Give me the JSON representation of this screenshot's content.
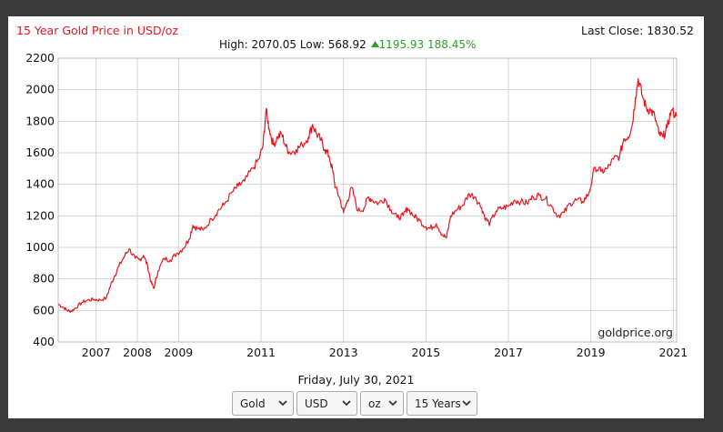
{
  "header": {
    "title": "15 Year Gold Price in USD/oz",
    "last_close": "Last Close: 1830.52",
    "high": "High: 2070.05",
    "low": "Low: 568.92",
    "change": "1195.93 188.45%",
    "up_icon": "triangle-up-icon"
  },
  "watermark": "goldprice.org",
  "footer": {
    "date": "Friday, July 30, 2021",
    "metal": "Gold",
    "currency": "USD",
    "unit": "oz",
    "range": "15 Years"
  },
  "colors": {
    "line": "#e8141c",
    "title": "#e8141c",
    "up": "#2aa12a",
    "grid": "#d4d4d4",
    "frame_bg": "#3a3a3a"
  },
  "chart_data": {
    "type": "line",
    "title": "15 Year Gold Price in USD/oz",
    "xlabel": "",
    "ylabel": "",
    "ylim": [
      400,
      2200
    ],
    "xlim": [
      2006.58,
      2021.58
    ],
    "y_ticks": [
      400,
      600,
      800,
      1000,
      1200,
      1400,
      1600,
      1800,
      2000,
      2200
    ],
    "x_ticks": [
      "2007",
      "2008",
      "2009",
      "2011",
      "2013",
      "2015",
      "2017",
      "2019",
      "2021"
    ],
    "grid": true,
    "series": [
      {
        "x": [
          2006.58,
          2006.7,
          2006.8,
          2006.9,
          2007.0,
          2007.15,
          2007.3,
          2007.45,
          2007.6,
          2007.75,
          2007.85,
          2007.95,
          2008.05,
          2008.2,
          2008.3,
          2008.45,
          2008.55,
          2008.65,
          2008.75,
          2008.83,
          2008.9,
          2009.0,
          2009.15,
          2009.3,
          2009.45,
          2009.6,
          2009.75,
          2009.85,
          2009.95,
          2010.1,
          2010.3,
          2010.45,
          2010.6,
          2010.8,
          2010.95,
          2011.1,
          2011.3,
          2011.45,
          2011.55,
          2011.62,
          2011.7,
          2011.8,
          2011.9,
          2012.0,
          2012.1,
          2012.2,
          2012.35,
          2012.5,
          2012.65,
          2012.75,
          2012.85,
          2012.95,
          2013.05,
          2013.15,
          2013.25,
          2013.3,
          2013.4,
          2013.5,
          2013.6,
          2013.7,
          2013.85,
          2014.0,
          2014.1,
          2014.2,
          2014.35,
          2014.5,
          2014.65,
          2014.8,
          2014.95,
          2015.05,
          2015.2,
          2015.35,
          2015.5,
          2015.6,
          2015.75,
          2015.9,
          2016.0,
          2016.1,
          2016.25,
          2016.4,
          2016.55,
          2016.7,
          2016.85,
          2016.95,
          2017.05,
          2017.2,
          2017.35,
          2017.5,
          2017.65,
          2017.8,
          2017.95,
          2018.1,
          2018.25,
          2018.4,
          2018.55,
          2018.7,
          2018.85,
          2019.0,
          2019.15,
          2019.3,
          2019.45,
          2019.6,
          2019.75,
          2019.9,
          2020.05,
          2020.2,
          2020.3,
          2020.4,
          2020.5,
          2020.58,
          2020.65,
          2020.75,
          2020.85,
          2020.95,
          2021.05,
          2021.15,
          2021.25,
          2021.35,
          2021.45,
          2021.58
        ],
        "values": [
          640,
          620,
          600,
          595,
          615,
          650,
          665,
          670,
          665,
          680,
          760,
          820,
          880,
          950,
          990,
          930,
          920,
          950,
          880,
          780,
          740,
          850,
          930,
          920,
          960,
          990,
          1050,
          1140,
          1120,
          1110,
          1180,
          1230,
          1270,
          1350,
          1390,
          1420,
          1500,
          1560,
          1650,
          1870,
          1750,
          1650,
          1700,
          1720,
          1640,
          1600,
          1620,
          1650,
          1700,
          1780,
          1720,
          1680,
          1620,
          1580,
          1470,
          1380,
          1320,
          1220,
          1300,
          1380,
          1230,
          1250,
          1320,
          1300,
          1280,
          1310,
          1240,
          1190,
          1200,
          1250,
          1200,
          1170,
          1130,
          1120,
          1150,
          1080,
          1060,
          1200,
          1240,
          1270,
          1340,
          1320,
          1250,
          1180,
          1150,
          1230,
          1250,
          1260,
          1300,
          1290,
          1280,
          1320,
          1330,
          1310,
          1260,
          1200,
          1220,
          1280,
          1300,
          1290,
          1340,
          1510,
          1480,
          1500,
          1560,
          1580,
          1690,
          1700,
          1770,
          1950,
          2070,
          1960,
          1880,
          1870,
          1830,
          1720,
          1700,
          1760,
          1870,
          1830
        ]
      }
    ]
  }
}
